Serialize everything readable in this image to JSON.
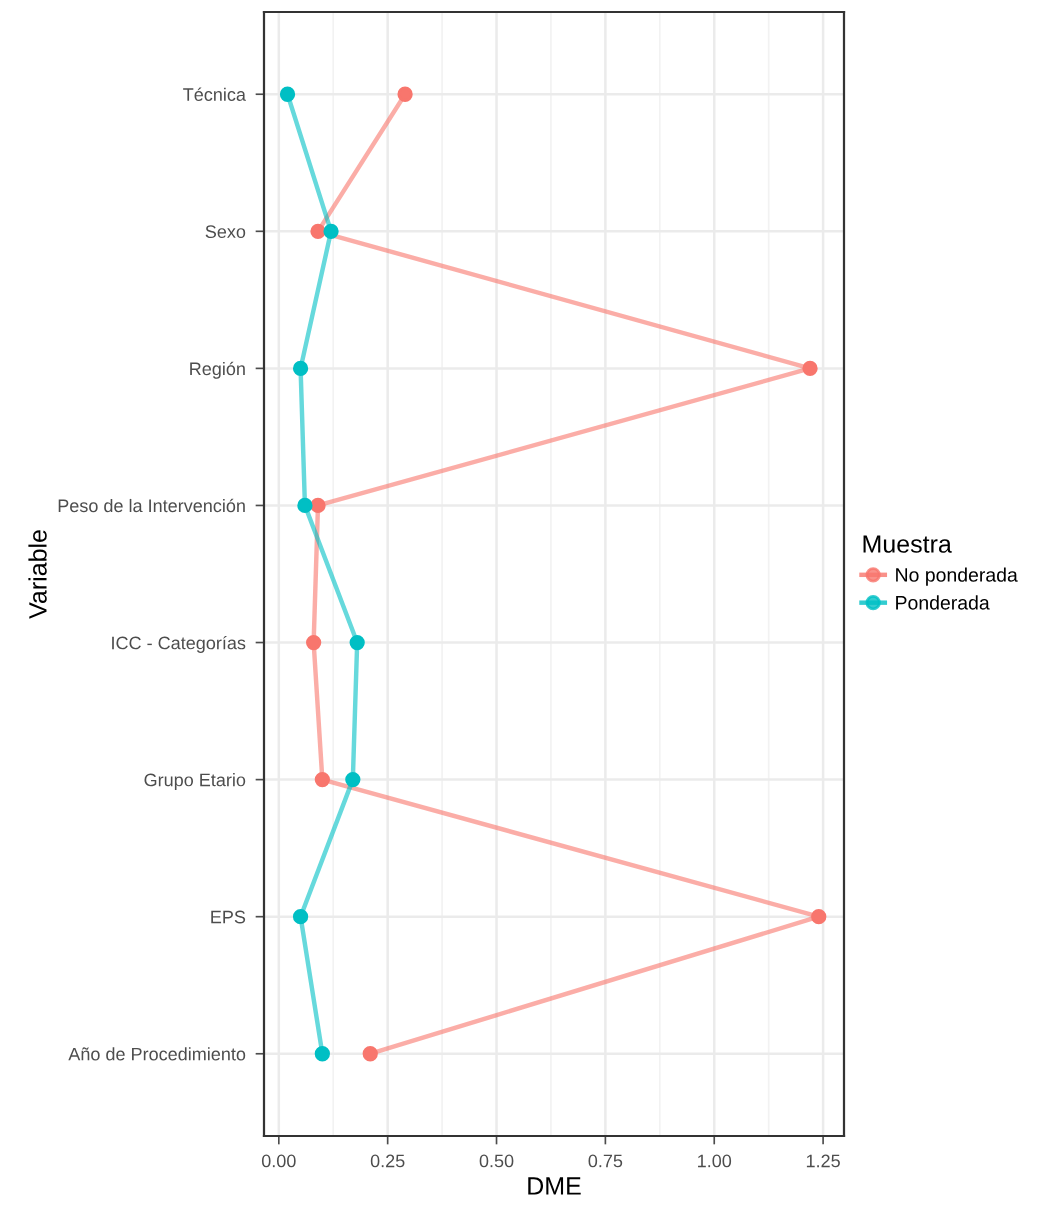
{
  "chart_data": {
    "type": "line",
    "orientation": "horizontal",
    "xlabel": "DME",
    "ylabel": "Variable",
    "legend_title": "Muestra",
    "legend": "right",
    "categories": [
      "Técnica",
      "Sexo",
      "Región",
      "Peso de la Intervención",
      "ICC - Categorías",
      "Grupo Etario",
      "EPS",
      "Año de Procedimiento"
    ],
    "series": [
      {
        "name": "No ponderada",
        "color": "#f8766d",
        "values": [
          0.29,
          0.09,
          1.22,
          0.09,
          0.08,
          0.1,
          1.24,
          0.21
        ]
      },
      {
        "name": "Ponderada",
        "color": "#00bfc4",
        "values": [
          0.02,
          0.12,
          0.05,
          0.06,
          0.18,
          0.17,
          0.05,
          0.1
        ]
      }
    ],
    "xlim": [
      -0.034,
      1.298
    ],
    "xticks": [
      {
        "value": 0,
        "label": "0.00"
      },
      {
        "value": 0.25,
        "label": "0.25"
      },
      {
        "value": 0.5,
        "label": "0.50"
      },
      {
        "value": 0.75,
        "label": "0.75"
      },
      {
        "value": 1,
        "label": "1.00"
      },
      {
        "value": 1.25,
        "label": "1.25"
      }
    ],
    "grid": true,
    "marker": "circle",
    "line_style": "solid"
  }
}
